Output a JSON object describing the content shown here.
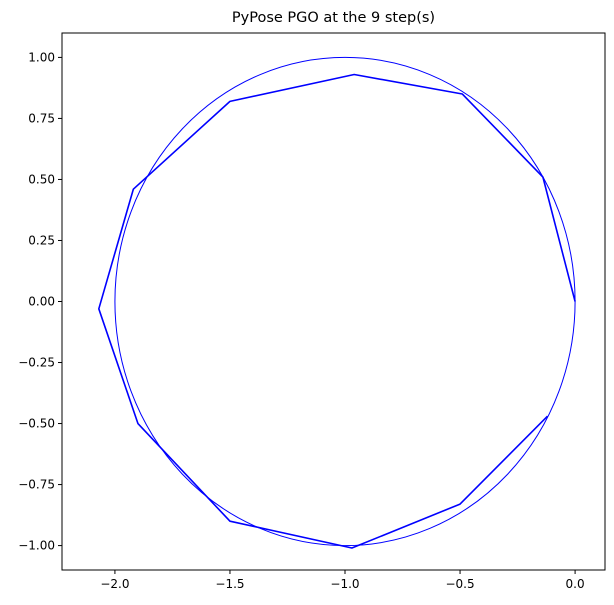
{
  "chart_data": {
    "type": "line",
    "title": "PyPose PGO at the 9 step(s)",
    "xlabel": "",
    "ylabel": "",
    "xlim": [
      -2.23,
      0.13
    ],
    "ylim": [
      -1.1,
      1.1
    ],
    "grid": false,
    "x_ticks": [
      -2.0,
      -1.5,
      -1.0,
      -0.5,
      0.0
    ],
    "x_tick_labels": [
      "−2.0",
      "−1.5",
      "−1.0",
      "−0.5",
      "0.0"
    ],
    "y_ticks": [
      1.0,
      0.75,
      0.5,
      0.25,
      0.0,
      -0.25,
      -0.5,
      -0.75,
      -1.0
    ],
    "y_tick_labels": [
      "1.00",
      "0.75",
      "0.50",
      "0.25",
      "0.00",
      "−0.25",
      "−0.50",
      "−0.75",
      "−1.00"
    ],
    "series": [
      {
        "kind": "trajectory",
        "color": "#0000ff",
        "x": [
          0.0,
          -0.14,
          -0.49,
          -0.96,
          -1.5,
          -1.92,
          -2.07,
          -1.9,
          -1.5,
          -0.97,
          -0.5,
          -0.12
        ],
        "y": [
          0.0,
          0.51,
          0.85,
          0.93,
          0.82,
          0.46,
          -0.03,
          -0.5,
          -0.9,
          -1.01,
          -0.83,
          -0.47
        ]
      },
      {
        "kind": "circle",
        "color": "#0000ff",
        "center": [
          -1.0,
          0.0
        ],
        "radius": 1.0
      }
    ]
  }
}
